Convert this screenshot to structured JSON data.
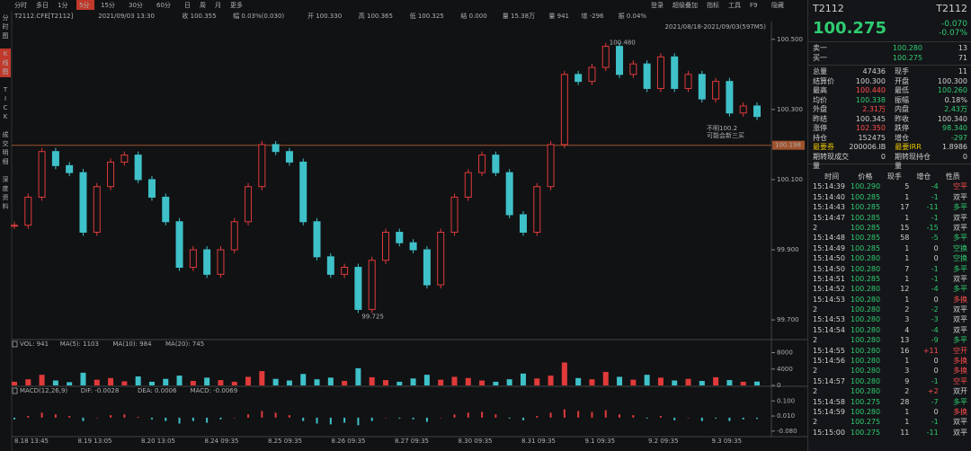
{
  "toolbar": {
    "left": [
      "分时",
      "多日",
      "1分",
      "5分",
      "15分",
      "30分",
      "60分",
      "日",
      "周",
      "月",
      "更多"
    ],
    "right": [
      "登录",
      "超级叠加",
      "指标",
      "工具",
      "F9",
      "隐藏"
    ]
  },
  "side_tabs": [
    "分时图",
    "K线图",
    "TICK",
    "成交明细",
    "深度资料"
  ],
  "info": [
    "T2112.CFE[T2112]",
    "2021/09/03 13:30",
    "收 100.355",
    "幅 0.03%(0.030)",
    "开 100.330",
    "高 100.365",
    "低 100.325",
    "结 0.000",
    "量 15.38万",
    "量 941",
    "增 -296",
    "振 0.04%"
  ],
  "price_chart": {
    "type": "candlestick",
    "range_label": "2021/08/18-2021/09/03(597M5)",
    "ylim": [
      99.649,
      100.5456
    ],
    "yticks": [
      {
        "value": 100.5,
        "label": "100.500"
      },
      {
        "value": 100.3,
        "label": "100.300"
      },
      {
        "value": 100.1,
        "label": "100.100"
      },
      {
        "value": 99.9,
        "label": "99.900"
      },
      {
        "value": 99.7,
        "label": "99.700"
      }
    ],
    "ref_line": {
      "value": 100.198,
      "label": "100.198"
    },
    "high_label": "100.480",
    "low_label": "99.725",
    "note": [
      "不明100.2",
      "可能会新三买"
    ],
    "close": [
      99.97,
      100.05,
      100.18,
      100.14,
      100.12,
      99.95,
      100.08,
      100.15,
      100.17,
      100.1,
      100.05,
      99.98,
      99.85,
      99.9,
      99.83,
      99.9,
      99.98,
      100.08,
      100.2,
      100.18,
      100.15,
      99.98,
      99.88,
      99.83,
      99.85,
      99.73,
      99.87,
      99.95,
      99.92,
      99.9,
      99.8,
      99.95,
      100.05,
      100.12,
      100.17,
      100.12,
      100.0,
      99.95,
      100.08,
      100.2,
      100.4,
      100.38,
      100.42,
      100.48,
      100.4,
      100.43,
      100.36,
      100.45,
      100.36,
      100.4,
      100.33,
      100.38,
      100.29,
      100.31,
      100.28
    ],
    "x_labels": [
      "8.18 13:45",
      "8.19 13:05",
      "8.20 13:05",
      "8.24 09:35",
      "8.25 09:35",
      "8.26 09:35",
      "8.27 09:35",
      "8.30 09:35",
      "8.31 09:35",
      "9.1 09:35",
      "9.2 09:35",
      "9.3 09:35"
    ]
  },
  "volume": {
    "header": [
      "VOL: 941",
      "MA(5): 1103",
      "MA(10): 984",
      "MA(20): 745"
    ],
    "ylim": [
      0,
      9000
    ],
    "yticks": [
      0,
      4000,
      8000
    ],
    "values": [
      900,
      1500,
      2600,
      1200,
      800,
      3100,
      1400,
      1800,
      1000,
      2200,
      900,
      1600,
      2400,
      1100,
      1900,
      1300,
      900,
      2100,
      3500,
      1600,
      1200,
      2800,
      1500,
      1900,
      1100,
      4200,
      2000,
      1300,
      900,
      1700,
      2600,
      1400,
      2100,
      1800,
      1200,
      900,
      1500,
      2900,
      1700,
      2400,
      5600,
      1800,
      1500,
      3300,
      2100,
      1400,
      2600,
      1900,
      1200,
      1600,
      1100,
      2000,
      1300,
      900,
      941
    ]
  },
  "macd": {
    "header": [
      "MACD(12,26,9)",
      "DIF: -0.0028",
      "DEA: 0.0006",
      "MACD: -0.0069"
    ],
    "ylim": [
      -0.1025,
      0.1338
    ],
    "yticks": [
      {
        "value": 0.1,
        "label": "0.100"
      },
      {
        "value": 0.01,
        "label": "0.010"
      },
      {
        "value": -0.08,
        "label": "-0.080"
      }
    ],
    "values": [
      -0.01,
      0.01,
      0.03,
      0.02,
      0.01,
      -0.02,
      0.0,
      0.015,
      0.02,
      0.005,
      -0.01,
      -0.02,
      -0.035,
      -0.02,
      -0.03,
      -0.01,
      0.0,
      0.02,
      0.04,
      0.03,
      0.015,
      -0.02,
      -0.035,
      -0.04,
      -0.03,
      -0.045,
      -0.02,
      0.0,
      -0.005,
      -0.01,
      -0.025,
      0.0,
      0.02,
      0.03,
      0.035,
      0.02,
      -0.005,
      -0.015,
      0.01,
      0.03,
      0.05,
      0.04,
      0.035,
      0.045,
      0.02,
      0.015,
      -0.005,
      0.01,
      -0.015,
      0.0,
      -0.02,
      -0.005,
      -0.02,
      -0.01,
      -0.0069
    ]
  },
  "quote": {
    "symbol": "T2112",
    "symbol_right": "T2112",
    "last": "100.275",
    "change": "-0.070",
    "change_pct": "-0.07%",
    "book": [
      [
        "卖一",
        "100.280",
        "13"
      ],
      [
        "买一",
        "100.275",
        "71"
      ]
    ],
    "stats": [
      [
        "总量",
        "47436",
        "现手",
        "11"
      ],
      [
        "结算价",
        "100.300",
        "开盘",
        "100.300"
      ],
      [
        "最高",
        "100.440",
        "最低",
        "100.260"
      ],
      [
        "均价",
        "100.338",
        "振幅",
        "0.18%"
      ],
      [
        "外盘",
        "2.31万",
        "内盘",
        "2.43万"
      ],
      [
        "昨结",
        "100.345",
        "昨收",
        "100.340"
      ],
      [
        "涨停",
        "102.350",
        "跌停",
        "98.340"
      ],
      [
        "持仓",
        "152475",
        "增仓",
        "-297"
      ],
      [
        "最要券",
        "200006.IB",
        "最要IRR",
        "1.8986"
      ],
      [
        "期转现成交量",
        "0",
        "期转现持仓量",
        "0"
      ]
    ],
    "stat_colors": [
      [
        "w",
        "w"
      ],
      [
        "w",
        "w"
      ],
      [
        "r",
        "g"
      ],
      [
        "g",
        "w"
      ],
      [
        "r",
        "g"
      ],
      [
        "w",
        "w"
      ],
      [
        "r",
        "g"
      ],
      [
        "w",
        "g"
      ],
      [
        "w",
        "w"
      ],
      [
        "w",
        "w"
      ]
    ],
    "trade_header": [
      "时间",
      "价格",
      "现手",
      "增仓",
      "性质"
    ],
    "trades": [
      [
        "15:14:39",
        "100.290",
        "5",
        "-4",
        "空平",
        "r"
      ],
      [
        "15:14:40",
        "100.285",
        "1",
        "-1",
        "双平",
        "w"
      ],
      [
        "15:14:43",
        "100.285",
        "17",
        "-11",
        "多平",
        "g"
      ],
      [
        "15:14:47",
        "100.285",
        "1",
        "-1",
        "双平",
        "w"
      ],
      [
        "2",
        "100.285",
        "15",
        "-15",
        "双平",
        "w"
      ],
      [
        "15:14:48",
        "100.285",
        "58",
        "-5",
        "多平",
        "g"
      ],
      [
        "15:14:49",
        "100.285",
        "1",
        "0",
        "空换",
        "g"
      ],
      [
        "15:14:50",
        "100.280",
        "1",
        "0",
        "空换",
        "g"
      ],
      [
        "15:14:50",
        "100.280",
        "7",
        "-1",
        "多平",
        "g"
      ],
      [
        "15:14:51",
        "100.285",
        "1",
        "-1",
        "双平",
        "w"
      ],
      [
        "15:14:52",
        "100.280",
        "12",
        "-4",
        "多平",
        "g"
      ],
      [
        "15:14:53",
        "100.280",
        "1",
        "0",
        "多换",
        "r"
      ],
      [
        "2",
        "100.280",
        "2",
        "-2",
        "双平",
        "w"
      ],
      [
        "15:14:53",
        "100.280",
        "3",
        "-3",
        "双平",
        "w"
      ],
      [
        "15:14:54",
        "100.280",
        "4",
        "-4",
        "双平",
        "w"
      ],
      [
        "2",
        "100.280",
        "13",
        "-9",
        "多平",
        "g"
      ],
      [
        "15:14:55",
        "100.280",
        "16",
        "+11",
        "空开",
        "r"
      ],
      [
        "15:14:56",
        "100.280",
        "1",
        "0",
        "多换",
        "r"
      ],
      [
        "2",
        "100.280",
        "3",
        "0",
        "多换",
        "r"
      ],
      [
        "15:14:57",
        "100.280",
        "9",
        "-1",
        "空平",
        "r"
      ],
      [
        "2",
        "100.280",
        "2",
        "+2",
        "双开",
        "w"
      ],
      [
        "15:14:58",
        "100.275",
        "28",
        "-7",
        "多平",
        "g"
      ],
      [
        "15:14:59",
        "100.280",
        "1",
        "0",
        "多换",
        "r"
      ],
      [
        "2",
        "100.275",
        "1",
        "-1",
        "双平",
        "w"
      ],
      [
        "15:15:00",
        "100.275",
        "11",
        "-11",
        "双平",
        "w"
      ]
    ]
  }
}
